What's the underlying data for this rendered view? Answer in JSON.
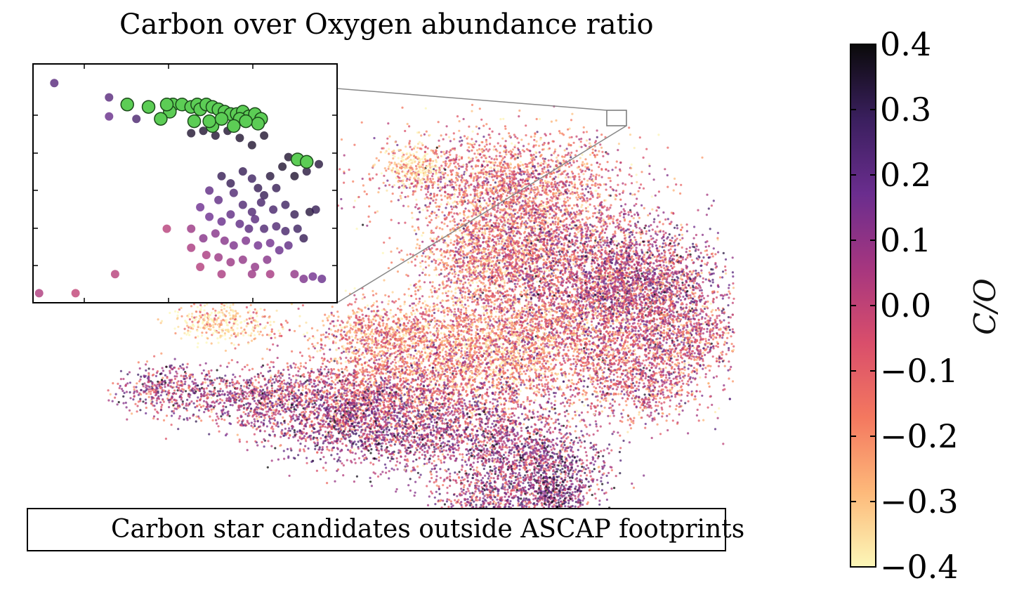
{
  "chart_data": {
    "type": "scatter",
    "title": "Carbon over Oxygen abundance ratio",
    "colorbar": {
      "label": "C/O",
      "range": [
        -0.4,
        0.4
      ],
      "ticks": [
        "0.4",
        "0.3",
        "0.2",
        "0.1",
        "0.0",
        "−0.1",
        "−0.2",
        "−0.3",
        "−0.4"
      ],
      "colormap": [
        "#fcf7b8",
        "#fdb97a",
        "#f4785f",
        "#d94e6b",
        "#a6367f",
        "#6a2d8e",
        "#3a1f5e",
        "#0a0a0a"
      ]
    },
    "legend": {
      "entry": "Carbon star candidates outside ASCAP footprints",
      "marker_color": "#5ccd55",
      "placement": "bottom"
    },
    "inset": {
      "candidates": [
        [
          0.46,
          0.83
        ],
        [
          0.31,
          0.83
        ],
        [
          0.38,
          0.82
        ],
        [
          0.45,
          0.8
        ],
        [
          0.49,
          0.83
        ],
        [
          0.52,
          0.82
        ],
        [
          0.54,
          0.83
        ],
        [
          0.55,
          0.81
        ],
        [
          0.57,
          0.83
        ],
        [
          0.59,
          0.82
        ],
        [
          0.61,
          0.81
        ],
        [
          0.63,
          0.8
        ],
        [
          0.65,
          0.79
        ],
        [
          0.67,
          0.79
        ],
        [
          0.69,
          0.8
        ],
        [
          0.71,
          0.78
        ],
        [
          0.73,
          0.79
        ],
        [
          0.75,
          0.77
        ],
        [
          0.68,
          0.77
        ],
        [
          0.74,
          0.75
        ],
        [
          0.66,
          0.74
        ],
        [
          0.59,
          0.74
        ],
        [
          0.42,
          0.77
        ],
        [
          0.53,
          0.76
        ],
        [
          0.58,
          0.76
        ],
        [
          0.62,
          0.77
        ],
        [
          0.7,
          0.76
        ],
        [
          0.87,
          0.6
        ],
        [
          0.9,
          0.59
        ],
        [
          0.44,
          0.83
        ]
      ],
      "points": [
        [
          0.07,
          0.92,
          0.22
        ],
        [
          0.25,
          0.86,
          0.22
        ],
        [
          0.25,
          0.78,
          0.18
        ],
        [
          0.34,
          0.77,
          0.25
        ],
        [
          0.44,
          0.84,
          0.3
        ],
        [
          0.52,
          0.71,
          0.35
        ],
        [
          0.56,
          0.72,
          0.35
        ],
        [
          0.6,
          0.7,
          0.35
        ],
        [
          0.64,
          0.72,
          0.35
        ],
        [
          0.68,
          0.69,
          0.35
        ],
        [
          0.72,
          0.66,
          0.35
        ],
        [
          0.76,
          0.7,
          0.35
        ],
        [
          0.84,
          0.61,
          0.35
        ],
        [
          0.78,
          0.53,
          0.33
        ],
        [
          0.82,
          0.57,
          0.35
        ],
        [
          0.86,
          0.53,
          0.35
        ],
        [
          0.9,
          0.55,
          0.33
        ],
        [
          0.94,
          0.58,
          0.33
        ],
        [
          0.62,
          0.53,
          0.3
        ],
        [
          0.65,
          0.5,
          0.3
        ],
        [
          0.69,
          0.55,
          0.3
        ],
        [
          0.72,
          0.52,
          0.28
        ],
        [
          0.74,
          0.48,
          0.3
        ],
        [
          0.76,
          0.45,
          0.3
        ],
        [
          0.8,
          0.48,
          0.3
        ],
        [
          0.58,
          0.47,
          0.2
        ],
        [
          0.61,
          0.43,
          0.2
        ],
        [
          0.66,
          0.46,
          0.24
        ],
        [
          0.69,
          0.41,
          0.24
        ],
        [
          0.72,
          0.38,
          0.24
        ],
        [
          0.75,
          0.42,
          0.26
        ],
        [
          0.79,
          0.39,
          0.26
        ],
        [
          0.83,
          0.41,
          0.28
        ],
        [
          0.86,
          0.37,
          0.3
        ],
        [
          0.91,
          0.38,
          0.33
        ],
        [
          0.93,
          0.39,
          0.3
        ],
        [
          0.55,
          0.4,
          0.17
        ],
        [
          0.58,
          0.36,
          0.17
        ],
        [
          0.62,
          0.34,
          0.18
        ],
        [
          0.65,
          0.37,
          0.2
        ],
        [
          0.68,
          0.33,
          0.2
        ],
        [
          0.71,
          0.31,
          0.22
        ],
        [
          0.73,
          0.35,
          0.22
        ],
        [
          0.76,
          0.31,
          0.24
        ],
        [
          0.8,
          0.32,
          0.24
        ],
        [
          0.83,
          0.3,
          0.26
        ],
        [
          0.87,
          0.31,
          0.28
        ],
        [
          0.89,
          0.27,
          0.3
        ],
        [
          0.56,
          0.27,
          0.12
        ],
        [
          0.6,
          0.29,
          0.12
        ],
        [
          0.63,
          0.26,
          0.12
        ],
        [
          0.66,
          0.24,
          0.14
        ],
        [
          0.7,
          0.26,
          0.14
        ],
        [
          0.74,
          0.24,
          0.16
        ],
        [
          0.78,
          0.25,
          0.16
        ],
        [
          0.81,
          0.22,
          0.18
        ],
        [
          0.84,
          0.24,
          0.2
        ],
        [
          0.52,
          0.31,
          0.08
        ],
        [
          0.44,
          0.31,
          0.02
        ],
        [
          0.52,
          0.23,
          0.05
        ],
        [
          0.57,
          0.2,
          0.05
        ],
        [
          0.61,
          0.19,
          0.08
        ],
        [
          0.65,
          0.17,
          0.08
        ],
        [
          0.69,
          0.18,
          0.1
        ],
        [
          0.73,
          0.15,
          0.1
        ],
        [
          0.77,
          0.18,
          0.12
        ],
        [
          0.55,
          0.15,
          0.03
        ],
        [
          0.62,
          0.12,
          0.05
        ],
        [
          0.72,
          0.12,
          0.08
        ],
        [
          0.78,
          0.12,
          0.06
        ],
        [
          0.86,
          0.12,
          0.1
        ],
        [
          0.89,
          0.1,
          0.14
        ],
        [
          0.92,
          0.11,
          0.16
        ],
        [
          0.95,
          0.1,
          0.18
        ],
        [
          0.27,
          0.12,
          0.02
        ],
        [
          0.14,
          0.04,
          0.0
        ],
        [
          0.02,
          0.04,
          0.04
        ]
      ]
    },
    "density_blobs": [
      [
        0.63,
        0.78,
        0.2,
        0.1,
        -0.12
      ],
      [
        0.67,
        0.68,
        0.14,
        0.12,
        -0.12
      ],
      [
        0.6,
        0.6,
        0.1,
        0.1,
        -0.15
      ],
      [
        0.78,
        0.6,
        0.18,
        0.12,
        0.0
      ],
      [
        0.86,
        0.55,
        0.12,
        0.1,
        0.05
      ],
      [
        0.92,
        0.45,
        0.08,
        0.08,
        -0.05
      ],
      [
        0.78,
        0.48,
        0.18,
        0.14,
        -0.05
      ],
      [
        0.64,
        0.44,
        0.18,
        0.12,
        -0.18
      ],
      [
        0.52,
        0.38,
        0.2,
        0.12,
        -0.15
      ],
      [
        0.4,
        0.32,
        0.16,
        0.08,
        0.0
      ],
      [
        0.25,
        0.32,
        0.12,
        0.06,
        0.05
      ],
      [
        0.12,
        0.34,
        0.08,
        0.05,
        0.05
      ],
      [
        0.6,
        0.25,
        0.16,
        0.1,
        0.05
      ],
      [
        0.7,
        0.18,
        0.1,
        0.08,
        0.1
      ],
      [
        0.62,
        0.1,
        0.1,
        0.08,
        0.05
      ],
      [
        0.72,
        0.12,
        0.06,
        0.06,
        0.15
      ],
      [
        0.42,
        0.26,
        0.14,
        0.08,
        0.08
      ],
      [
        0.85,
        0.35,
        0.1,
        0.08,
        -0.05
      ],
      [
        0.2,
        0.48,
        0.08,
        0.04,
        -0.32
      ],
      [
        0.45,
        0.46,
        0.1,
        0.06,
        -0.2
      ],
      [
        0.5,
        0.8,
        0.04,
        0.04,
        -0.35
      ]
    ]
  }
}
